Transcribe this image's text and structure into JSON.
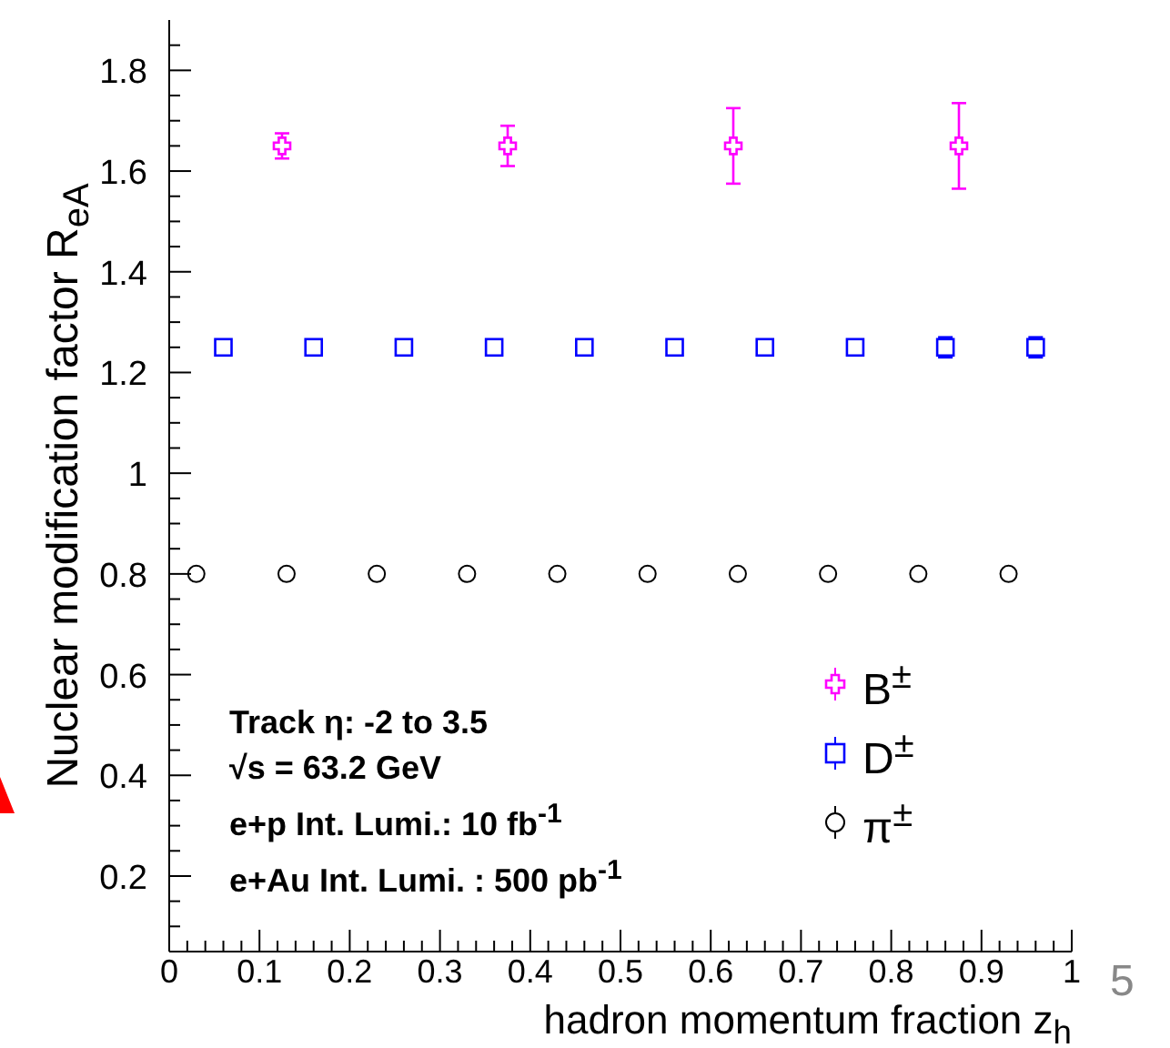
{
  "chart_data": {
    "type": "scatter",
    "xlabel": "hadron momentum fraction z$_{h}$",
    "ylabel": "Nuclear modification factor R$_{eA}$",
    "xlim": [
      0,
      1
    ],
    "ylim": [
      0.05,
      1.9
    ],
    "xticks": [
      0,
      {
        "value": 0.02,
        "label": null
      },
      {
        "value": 0.04,
        "label": null
      },
      {
        "value": 0.06,
        "label": null
      },
      {
        "value": 0.08,
        "label": null
      },
      0.1,
      {
        "value": 0.12,
        "label": null
      },
      {
        "value": 0.14,
        "label": null
      },
      {
        "value": 0.16,
        "label": null
      },
      {
        "value": 0.18,
        "label": null
      },
      0.2,
      {
        "value": 0.22,
        "label": null
      },
      {
        "value": 0.24,
        "label": null
      },
      {
        "value": 0.26,
        "label": null
      },
      {
        "value": 0.28,
        "label": null
      },
      0.3,
      {
        "value": 0.32,
        "label": null
      },
      {
        "value": 0.34,
        "label": null
      },
      {
        "value": 0.36,
        "label": null
      },
      {
        "value": 0.38,
        "label": null
      },
      0.4,
      {
        "value": 0.42,
        "label": null
      },
      {
        "value": 0.44,
        "label": null
      },
      {
        "value": 0.46,
        "label": null
      },
      {
        "value": 0.48,
        "label": null
      },
      0.5,
      {
        "value": 0.52,
        "label": null
      },
      {
        "value": 0.54,
        "label": null
      },
      {
        "value": 0.56,
        "label": null
      },
      {
        "value": 0.58,
        "label": null
      },
      0.6,
      {
        "value": 0.62,
        "label": null
      },
      {
        "value": 0.64,
        "label": null
      },
      {
        "value": 0.66,
        "label": null
      },
      {
        "value": 0.68,
        "label": null
      },
      0.7,
      {
        "value": 0.72,
        "label": null
      },
      {
        "value": 0.74,
        "label": null
      },
      {
        "value": 0.76,
        "label": null
      },
      {
        "value": 0.78,
        "label": null
      },
      0.8,
      {
        "value": 0.82,
        "label": null
      },
      {
        "value": 0.84,
        "label": null
      },
      {
        "value": 0.86,
        "label": null
      },
      {
        "value": 0.88,
        "label": null
      },
      0.9,
      {
        "value": 0.92,
        "label": null
      },
      {
        "value": 0.94,
        "label": null
      },
      {
        "value": 0.96,
        "label": null
      },
      {
        "value": 0.98,
        "label": null
      },
      1
    ],
    "yticks": [
      {
        "value": 0.1,
        "label": null
      },
      {
        "value": 0.15,
        "label": null
      },
      0.2,
      {
        "value": 0.25,
        "label": null
      },
      {
        "value": 0.3,
        "label": null
      },
      {
        "value": 0.35,
        "label": null
      },
      0.4,
      {
        "value": 0.45,
        "label": null
      },
      {
        "value": 0.5,
        "label": null
      },
      {
        "value": 0.55,
        "label": null
      },
      0.6,
      {
        "value": 0.65,
        "label": null
      },
      {
        "value": 0.7,
        "label": null
      },
      {
        "value": 0.75,
        "label": null
      },
      0.8,
      {
        "value": 0.85,
        "label": null
      },
      {
        "value": 0.9,
        "label": null
      },
      {
        "value": 0.95,
        "label": null
      },
      1,
      {
        "value": 1.05,
        "label": null
      },
      {
        "value": 1.1,
        "label": null
      },
      {
        "value": 1.15,
        "label": null
      },
      1.2,
      {
        "value": 1.25,
        "label": null
      },
      {
        "value": 1.3,
        "label": null
      },
      {
        "value": 1.35,
        "label": null
      },
      1.4,
      {
        "value": 1.45,
        "label": null
      },
      {
        "value": 1.5,
        "label": null
      },
      {
        "value": 1.55,
        "label": null
      },
      1.6,
      {
        "value": 1.65,
        "label": null
      },
      {
        "value": 1.7,
        "label": null
      },
      {
        "value": 1.75,
        "label": null
      },
      1.8,
      {
        "value": 1.85,
        "label": null
      }
    ],
    "grid": false,
    "legend": "bottom right",
    "series": [
      {
        "name": "B$^{±}$",
        "color": "#ff00ff",
        "marker": "cross",
        "x": [
          0.125,
          0.375,
          0.625,
          0.875
        ],
        "values": [
          1.65,
          1.65,
          1.65,
          1.65
        ],
        "errors": [
          0.025,
          0.04,
          0.075,
          0.085
        ]
      },
      {
        "name": "D$^{±}$",
        "color": "#0000ff",
        "marker": "square",
        "x": [
          0.06,
          0.16,
          0.26,
          0.36,
          0.46,
          0.56,
          0.66,
          0.76,
          0.86,
          0.96
        ],
        "values": [
          1.25,
          1.25,
          1.25,
          1.25,
          1.25,
          1.25,
          1.25,
          1.25,
          1.25,
          1.25
        ],
        "errors": [
          null,
          null,
          null,
          null,
          null,
          null,
          null,
          null,
          0.02,
          0.02
        ]
      },
      {
        "name": "π$^{±}$",
        "color": "#000000",
        "marker": "circle",
        "x": [
          0.03,
          0.13,
          0.23,
          0.33,
          0.43,
          0.53,
          0.63,
          0.73,
          0.83,
          0.93
        ],
        "values": [
          0.8,
          0.8,
          0.8,
          0.8,
          0.8,
          0.8,
          0.8,
          0.8,
          0.8,
          0.8
        ]
      }
    ],
    "annotations": [
      "Track  η: -2 to 3.5",
      "√s = 63.2 GeV",
      "e+p Int. Lumi.: 10 fb$^{-1}$",
      "e+Au Int. Lumi. : 500 pb$^{-1}$",
      "5"
    ]
  }
}
